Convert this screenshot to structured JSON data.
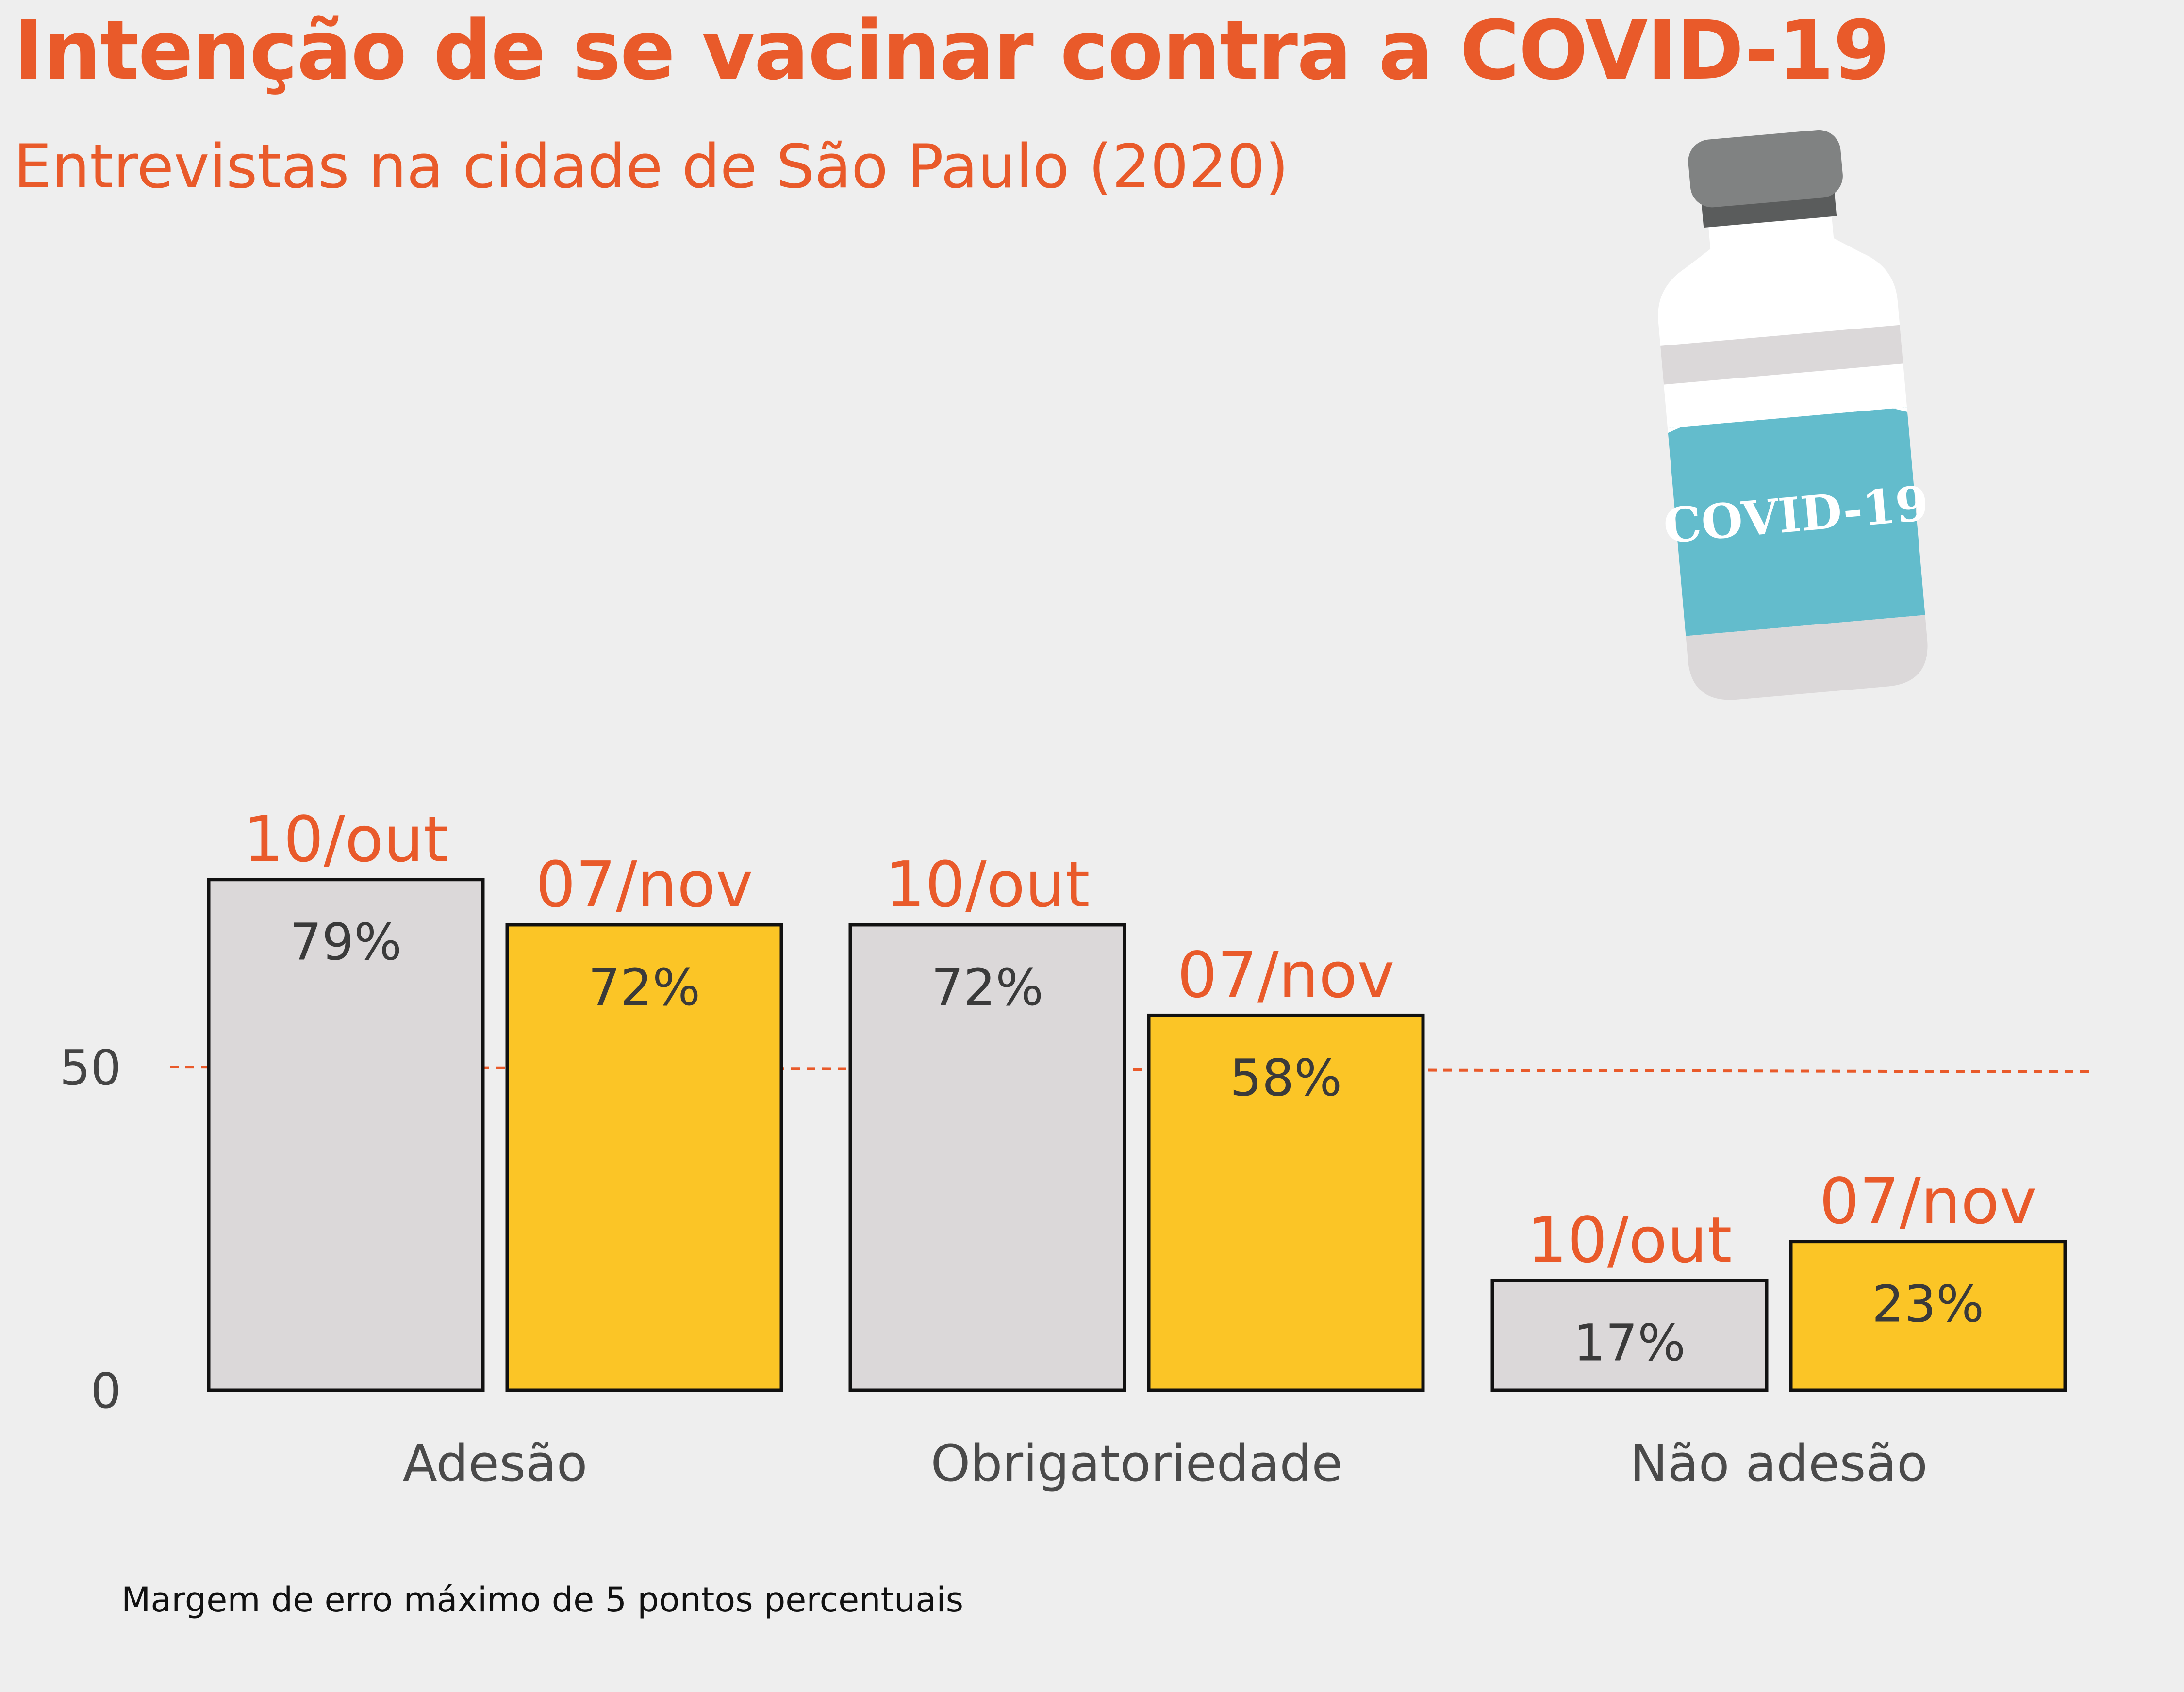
{
  "header": {
    "title": "Intenção de se vacinar contra a  COVID-19",
    "subtitle": "Entrevistas na cidade de São Paulo (2020)"
  },
  "footnote": "Margem de erro máximo de 5 pontos percentuais",
  "illustration": {
    "icon": "vaccine-vial-icon",
    "label": "COVID-19",
    "colors": {
      "cap": "#808282",
      "label": "#63bccc",
      "glass": "#ffffff",
      "band": "#dbd8d9"
    }
  },
  "colors": {
    "accent": "#e95a2a",
    "series_1": "#dbd8d9",
    "series_2": "#fbc526",
    "bar_outline": "#111111",
    "reference_line": "#e95a2a"
  },
  "chart_data": {
    "type": "bar",
    "categories": [
      "Adesão",
      "Obrigatoriedade",
      "Não adesão"
    ],
    "series": [
      {
        "name": "10/out",
        "values": [
          79,
          72,
          17
        ],
        "labels": [
          "79%",
          "72%",
          "17%"
        ],
        "color": "#dbd8d9"
      },
      {
        "name": "07/nov",
        "values": [
          72,
          58,
          23
        ],
        "labels": [
          "72%",
          "58%",
          "23%"
        ],
        "color": "#fbc526"
      }
    ],
    "yticks": [
      "0",
      "50"
    ],
    "ytick_values": [
      0,
      50
    ],
    "ylim": [
      0,
      100
    ],
    "reference_line": 50,
    "reference_line_style": "dashed",
    "series_label_placement": "above each bar",
    "grid": false,
    "legend": "none"
  }
}
